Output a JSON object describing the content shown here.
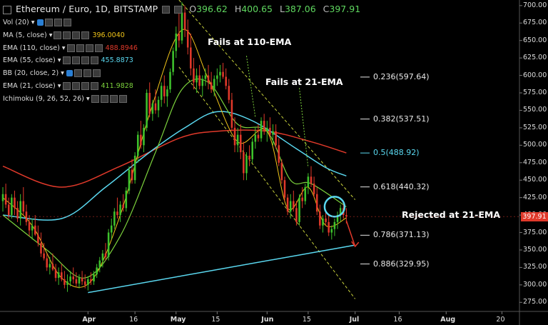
{
  "header": {
    "symbol": "Ethereum / Euro, 1D, BITSTAMP",
    "open_label": "O",
    "open": "396.62",
    "high_label": "H",
    "high": "400.65",
    "low_label": "L",
    "low": "387.06",
    "close_label": "C",
    "close": "397.91"
  },
  "indicators": [
    {
      "label": "Vol (20)",
      "value": "",
      "color": "#dddddd"
    },
    {
      "label": "MA (5, close)",
      "value": "396.0040",
      "color": "#f0c419"
    },
    {
      "label": "EMA (110, close)",
      "value": "488.8946",
      "color": "#e0392a"
    },
    {
      "label": "EMA (55, close)",
      "value": "455.8873",
      "color": "#5ad8f0"
    },
    {
      "label": "BB (20, close, 2)",
      "value": "",
      "color": "#dddddd"
    },
    {
      "label": "EMA (21, close)",
      "value": "411.9828",
      "color": "#7cd23c"
    },
    {
      "label": "Ichimoku (9, 26, 52, 26)",
      "value": "",
      "color": "#dddddd"
    }
  ],
  "annotations": {
    "fails_110": "Fails at 110-EMA",
    "fails_21": "Fails at 21-EMA",
    "rejected_21": "Rejected at 21-EMA"
  },
  "fib_levels": [
    {
      "label": "0.236(597.64)",
      "price": 597.64,
      "color": "#e8e8e8"
    },
    {
      "label": "0.382(537.51)",
      "price": 537.51,
      "color": "#e8e8e8"
    },
    {
      "label": "0.5(488.92)",
      "price": 488.92,
      "color": "#5ad8f0"
    },
    {
      "label": "0.618(440.32)",
      "price": 440.32,
      "color": "#e8e8e8"
    },
    {
      "label": "0.786(371.13)",
      "price": 371.13,
      "color": "#e8e8e8"
    },
    {
      "label": "0.886(329.95)",
      "price": 329.95,
      "color": "#e8e8e8"
    }
  ],
  "last_price": "397.91",
  "colors": {
    "up": "#3ec22c",
    "down": "#e0392a",
    "ema110": "#e0392a",
    "ema55": "#5ad8f0",
    "ema21": "#7cd23c",
    "ma5": "#f0c419",
    "trendline": "#5ad8f0",
    "channel": "#c8d23c",
    "accent_circle": "#5ad8f0",
    "arrow": "#e0392a"
  },
  "chart_data": {
    "type": "candlestick",
    "ylim": [
      262,
      708
    ],
    "y_ticks": [
      "700.00",
      "675.00",
      "650.00",
      "625.00",
      "600.00",
      "575.00",
      "550.00",
      "525.00",
      "500.00",
      "475.00",
      "450.00",
      "425.00",
      "400.00",
      "375.00",
      "350.00",
      "325.00",
      "300.00",
      "275.00"
    ],
    "x_ticks": [
      {
        "label": "Apr",
        "day": 29,
        "bold": true
      },
      {
        "label": "16",
        "day": 45,
        "bold": false
      },
      {
        "label": "May",
        "day": 59,
        "bold": true
      },
      {
        "label": "15",
        "day": 73,
        "bold": false
      },
      {
        "label": "Jun",
        "day": 90,
        "bold": true
      },
      {
        "label": "15",
        "day": 104,
        "bold": false
      },
      {
        "label": "Jul",
        "day": 120,
        "bold": true
      },
      {
        "label": "16",
        "day": 135,
        "bold": false
      },
      {
        "label": "Aug",
        "day": 151,
        "bold": true
      },
      {
        "label": "20",
        "day": 170,
        "bold": false
      }
    ],
    "x_range": [
      0,
      175
    ],
    "candles": [
      [
        0,
        420,
        440,
        405,
        430
      ],
      [
        1,
        430,
        445,
        410,
        415
      ],
      [
        2,
        415,
        425,
        395,
        400
      ],
      [
        3,
        400,
        430,
        395,
        425
      ],
      [
        4,
        425,
        435,
        400,
        410
      ],
      [
        5,
        410,
        420,
        390,
        395
      ],
      [
        6,
        395,
        430,
        385,
        420
      ],
      [
        7,
        420,
        440,
        400,
        405
      ],
      [
        8,
        405,
        415,
        385,
        390
      ],
      [
        9,
        390,
        400,
        370,
        378
      ],
      [
        10,
        378,
        395,
        365,
        385
      ],
      [
        11,
        385,
        400,
        370,
        372
      ],
      [
        12,
        372,
        385,
        355,
        360
      ],
      [
        13,
        360,
        375,
        340,
        345
      ],
      [
        14,
        345,
        360,
        335,
        338
      ],
      [
        15,
        338,
        345,
        320,
        325
      ],
      [
        16,
        325,
        340,
        315,
        330
      ],
      [
        17,
        330,
        345,
        320,
        322
      ],
      [
        18,
        322,
        330,
        305,
        310
      ],
      [
        19,
        310,
        325,
        300,
        318
      ],
      [
        20,
        318,
        330,
        305,
        308
      ],
      [
        21,
        308,
        320,
        295,
        300
      ],
      [
        22,
        300,
        315,
        290,
        305
      ],
      [
        23,
        305,
        320,
        298,
        312
      ],
      [
        24,
        312,
        325,
        302,
        308
      ],
      [
        25,
        308,
        318,
        298,
        302
      ],
      [
        26,
        302,
        315,
        295,
        310
      ],
      [
        27,
        310,
        320,
        300,
        305
      ],
      [
        28,
        305,
        315,
        295,
        300
      ],
      [
        29,
        300,
        312,
        292,
        308
      ],
      [
        30,
        308,
        318,
        300,
        305
      ],
      [
        31,
        305,
        320,
        300,
        315
      ],
      [
        32,
        315,
        330,
        310,
        325
      ],
      [
        33,
        325,
        340,
        318,
        335
      ],
      [
        34,
        335,
        350,
        325,
        345
      ],
      [
        35,
        345,
        360,
        335,
        340
      ],
      [
        36,
        340,
        380,
        335,
        375
      ],
      [
        37,
        375,
        395,
        365,
        385
      ],
      [
        38,
        385,
        410,
        380,
        405
      ],
      [
        39,
        405,
        425,
        395,
        400
      ],
      [
        40,
        400,
        420,
        390,
        415
      ],
      [
        41,
        415,
        430,
        405,
        410
      ],
      [
        42,
        410,
        440,
        405,
        435
      ],
      [
        43,
        435,
        470,
        430,
        465
      ],
      [
        44,
        465,
        480,
        445,
        450
      ],
      [
        45,
        450,
        490,
        445,
        485
      ],
      [
        46,
        485,
        520,
        475,
        515
      ],
      [
        47,
        515,
        535,
        495,
        500
      ],
      [
        48,
        500,
        530,
        490,
        525
      ],
      [
        49,
        525,
        580,
        520,
        575
      ],
      [
        50,
        575,
        590,
        540,
        545
      ],
      [
        51,
        545,
        565,
        535,
        560
      ],
      [
        52,
        560,
        580,
        545,
        550
      ],
      [
        53,
        550,
        570,
        540,
        565
      ],
      [
        54,
        565,
        590,
        555,
        585
      ],
      [
        55,
        585,
        600,
        560,
        570
      ],
      [
        56,
        570,
        585,
        555,
        580
      ],
      [
        57,
        580,
        610,
        575,
        605
      ],
      [
        58,
        605,
        640,
        600,
        635
      ],
      [
        59,
        635,
        670,
        625,
        660
      ],
      [
        60,
        660,
        690,
        640,
        650
      ],
      [
        61,
        650,
        705,
        645,
        690
      ],
      [
        62,
        690,
        700,
        655,
        665
      ],
      [
        63,
        665,
        680,
        630,
        640
      ],
      [
        64,
        640,
        660,
        600,
        610
      ],
      [
        65,
        610,
        625,
        580,
        590
      ],
      [
        66,
        590,
        610,
        575,
        600
      ],
      [
        67,
        600,
        615,
        580,
        585
      ],
      [
        68,
        585,
        600,
        570,
        595
      ],
      [
        69,
        595,
        610,
        585,
        600
      ],
      [
        70,
        600,
        615,
        580,
        590
      ],
      [
        71,
        590,
        605,
        575,
        580
      ],
      [
        72,
        580,
        600,
        570,
        595
      ],
      [
        73,
        595,
        610,
        585,
        600
      ],
      [
        74,
        600,
        615,
        590,
        605
      ],
      [
        75,
        605,
        618,
        595,
        598
      ],
      [
        76,
        598,
        610,
        580,
        585
      ],
      [
        77,
        585,
        595,
        560,
        565
      ],
      [
        78,
        565,
        575,
        520,
        525
      ],
      [
        79,
        525,
        540,
        490,
        500
      ],
      [
        80,
        500,
        525,
        490,
        515
      ],
      [
        81,
        515,
        530,
        480,
        490
      ],
      [
        82,
        490,
        505,
        450,
        460
      ],
      [
        83,
        460,
        490,
        450,
        485
      ],
      [
        84,
        485,
        500,
        470,
        480
      ],
      [
        85,
        480,
        510,
        475,
        505
      ],
      [
        86,
        505,
        525,
        495,
        515
      ],
      [
        87,
        515,
        530,
        505,
        510
      ],
      [
        88,
        510,
        540,
        505,
        535
      ],
      [
        89,
        535,
        545,
        515,
        520
      ],
      [
        90,
        520,
        535,
        505,
        525
      ],
      [
        91,
        525,
        540,
        510,
        515
      ],
      [
        92,
        515,
        530,
        500,
        520
      ],
      [
        93,
        520,
        530,
        495,
        500
      ],
      [
        94,
        500,
        510,
        470,
        475
      ],
      [
        95,
        475,
        480,
        445,
        450
      ],
      [
        96,
        450,
        455,
        420,
        425
      ],
      [
        97,
        425,
        430,
        400,
        405
      ],
      [
        98,
        405,
        430,
        395,
        420
      ],
      [
        99,
        420,
        435,
        405,
        410
      ],
      [
        100,
        410,
        420,
        385,
        390
      ],
      [
        101,
        390,
        430,
        385,
        425
      ],
      [
        102,
        425,
        440,
        410,
        420
      ],
      [
        103,
        420,
        445,
        415,
        440
      ],
      [
        104,
        440,
        460,
        430,
        455
      ],
      [
        105,
        455,
        470,
        440,
        445
      ],
      [
        106,
        445,
        455,
        425,
        430
      ],
      [
        107,
        430,
        440,
        400,
        405
      ],
      [
        108,
        405,
        415,
        380,
        385
      ],
      [
        109,
        385,
        400,
        375,
        395
      ],
      [
        110,
        395,
        405,
        385,
        390
      ],
      [
        111,
        390,
        400,
        370,
        375
      ],
      [
        112,
        375,
        385,
        365,
        380
      ],
      [
        113,
        380,
        395,
        370,
        390
      ],
      [
        114,
        390,
        405,
        380,
        400
      ],
      [
        115,
        400,
        415,
        390,
        410
      ],
      [
        116,
        410,
        420,
        395,
        400
      ],
      [
        117,
        400,
        410,
        388,
        398
      ]
    ],
    "ema110": [
      [
        0,
        470
      ],
      [
        20,
        440
      ],
      [
        40,
        470
      ],
      [
        60,
        510
      ],
      [
        73,
        520
      ],
      [
        90,
        520
      ],
      [
        105,
        505
      ],
      [
        117,
        489
      ]
    ],
    "ema55": [
      [
        0,
        400
      ],
      [
        20,
        395
      ],
      [
        35,
        440
      ],
      [
        50,
        490
      ],
      [
        62,
        525
      ],
      [
        73,
        548
      ],
      [
        85,
        535
      ],
      [
        100,
        495
      ],
      [
        110,
        468
      ],
      [
        117,
        456
      ]
    ],
    "ema21": [
      [
        0,
        400
      ],
      [
        15,
        350
      ],
      [
        28,
        310
      ],
      [
        40,
        370
      ],
      [
        52,
        490
      ],
      [
        61,
        580
      ],
      [
        70,
        590
      ],
      [
        80,
        530
      ],
      [
        90,
        520
      ],
      [
        98,
        450
      ],
      [
        105,
        445
      ],
      [
        117,
        412
      ]
    ],
    "ma5": [
      [
        0,
        425
      ],
      [
        10,
        385
      ],
      [
        20,
        310
      ],
      [
        30,
        305
      ],
      [
        40,
        400
      ],
      [
        50,
        545
      ],
      [
        61,
        665
      ],
      [
        70,
        595
      ],
      [
        80,
        505
      ],
      [
        90,
        520
      ],
      [
        97,
        410
      ],
      [
        104,
        440
      ],
      [
        110,
        385
      ],
      [
        117,
        396
      ]
    ],
    "support_line": [
      [
        29,
        289
      ],
      [
        120,
        357
      ]
    ],
    "channel_upper": [
      [
        60,
        708
      ],
      [
        120,
        422
      ]
    ],
    "channel_lower": [
      [
        60,
        612
      ],
      [
        120,
        280
      ]
    ]
  }
}
